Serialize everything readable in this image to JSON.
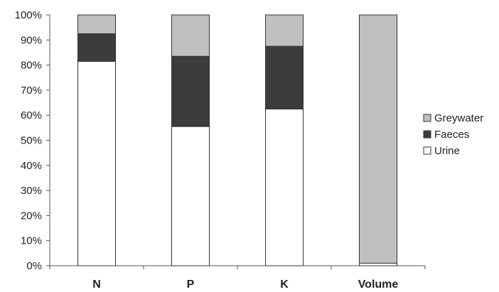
{
  "chart_data": {
    "type": "bar",
    "stacked": true,
    "normalized": true,
    "categories": [
      "N",
      "P",
      "K",
      "Volume"
    ],
    "series": [
      {
        "name": "Urine",
        "values": [
          81.5,
          55.5,
          62.5,
          1
        ],
        "color": "#ffffff"
      },
      {
        "name": "Faeces",
        "values": [
          11,
          28,
          25,
          0
        ],
        "color": "#3c3c3c"
      },
      {
        "name": "Greywater",
        "values": [
          7.5,
          16.5,
          12.5,
          99
        ],
        "color": "#c0c0c0"
      }
    ],
    "legend_order": [
      "Greywater",
      "Faeces",
      "Urine"
    ],
    "yticks": [
      "0%",
      "10%",
      "20%",
      "30%",
      "40%",
      "50%",
      "60%",
      "70%",
      "80%",
      "90%",
      "100%"
    ],
    "ylim": [
      0,
      100
    ],
    "grid": false,
    "legend_position": "right",
    "title": "",
    "xlabel": "",
    "ylabel": ""
  }
}
